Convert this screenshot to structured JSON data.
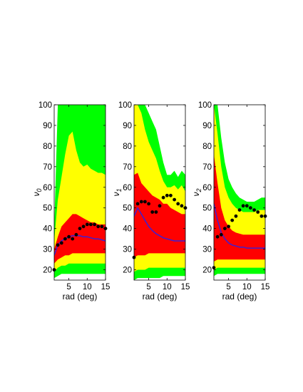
{
  "colors": {
    "outer_band": "#00ff00",
    "middle_band": "#ffff00",
    "inner_band": "#ff0000",
    "median_line": "#3a1fd6",
    "points": "#000000"
  },
  "chart_data": [
    {
      "type": "area",
      "panel": "nu0",
      "ylabel": "ν",
      "ylabel_sub": "0",
      "xlabel": "rad (deg)",
      "xlim": [
        1,
        15
      ],
      "ylim": [
        15,
        100
      ],
      "xticks": [
        5,
        10,
        15
      ],
      "yticks": [
        20,
        30,
        40,
        50,
        60,
        70,
        80,
        90,
        100
      ],
      "x": [
        1,
        2,
        3,
        4,
        5,
        6,
        7,
        8,
        9,
        10,
        11,
        12,
        13,
        14,
        15
      ],
      "outer_band": {
        "low": [
          16,
          17,
          18,
          18,
          18,
          18,
          18,
          18,
          18,
          18,
          18,
          18,
          18,
          18,
          18
        ],
        "high": [
          40,
          100,
          100,
          100,
          100,
          100,
          100,
          100,
          100,
          100,
          100,
          100,
          100,
          100,
          100
        ]
      },
      "middle_band": {
        "low": [
          19,
          21,
          22,
          22,
          23,
          23,
          23,
          23,
          23,
          23,
          23,
          23,
          23,
          23,
          23
        ],
        "high": [
          34,
          54,
          65,
          76,
          85,
          87,
          78,
          72,
          70,
          71,
          69,
          68,
          67,
          67,
          66
        ]
      },
      "inner_band": {
        "low": [
          23,
          25,
          26,
          27,
          27,
          28,
          28,
          28,
          28,
          28,
          28,
          28,
          28,
          28,
          28
        ],
        "high": [
          30,
          36,
          41,
          43,
          45,
          47,
          47,
          46,
          45,
          44,
          43,
          43,
          42,
          42,
          42
        ]
      },
      "median": [
        27,
        32,
        34,
        35,
        36,
        36.5,
        36.5,
        36.5,
        36,
        36,
        35.5,
        35,
        35,
        34.5,
        34
      ],
      "points": [
        {
          "x": 1,
          "y": 20
        },
        {
          "x": 2,
          "y": 32
        },
        {
          "x": 3,
          "y": 33
        },
        {
          "x": 4,
          "y": 35
        },
        {
          "x": 5,
          "y": 36
        },
        {
          "x": 6,
          "y": 35
        },
        {
          "x": 7,
          "y": 37
        },
        {
          "x": 8,
          "y": 40
        },
        {
          "x": 9,
          "y": 41
        },
        {
          "x": 10,
          "y": 42
        },
        {
          "x": 11,
          "y": 42
        },
        {
          "x": 12,
          "y": 42
        },
        {
          "x": 13,
          "y": 41
        },
        {
          "x": 14,
          "y": 41
        },
        {
          "x": 15,
          "y": 40
        }
      ]
    },
    {
      "type": "area",
      "panel": "nu1",
      "ylabel": "ν",
      "ylabel_sub": "1",
      "xlabel": "rad (deg)",
      "xlim": [
        1,
        15
      ],
      "ylim": [
        15,
        100
      ],
      "xticks": [
        5,
        10,
        15
      ],
      "yticks": [
        20,
        30,
        40,
        50,
        60,
        70,
        80,
        90,
        100
      ],
      "x": [
        1,
        2,
        3,
        4,
        5,
        6,
        7,
        8,
        9,
        10,
        11,
        12,
        13,
        14,
        15
      ],
      "outer_band": {
        "low": [
          15,
          16,
          16,
          16,
          16,
          16,
          16,
          16,
          17,
          17,
          17,
          17,
          17,
          17,
          17
        ],
        "high": [
          100,
          100,
          100,
          100,
          96,
          92,
          88,
          80,
          72,
          66,
          66,
          68,
          65,
          68,
          66
        ]
      },
      "middle_band": {
        "low": [
          19,
          20,
          20,
          20,
          21,
          21,
          21,
          21,
          21,
          21,
          21,
          21,
          21,
          21,
          21
        ],
        "high": [
          100,
          100,
          96,
          88,
          82,
          78,
          74,
          68,
          63,
          60,
          60,
          61,
          59,
          61,
          58
        ]
      },
      "inner_band": {
        "low": [
          26,
          27,
          27,
          27,
          28,
          28,
          28,
          28,
          28,
          28,
          28,
          28,
          28,
          28,
          28
        ],
        "high": [
          66,
          67,
          62,
          60,
          58,
          56,
          55,
          54,
          52,
          52,
          50,
          49,
          48,
          47,
          47
        ]
      },
      "median": [
        46,
        50,
        47,
        44,
        41,
        39,
        37.5,
        36.5,
        35.5,
        35,
        34.5,
        34,
        34,
        34,
        34
      ],
      "points": [
        {
          "x": 1,
          "y": 26
        },
        {
          "x": 2,
          "y": 52
        },
        {
          "x": 3,
          "y": 53
        },
        {
          "x": 4,
          "y": 53
        },
        {
          "x": 5,
          "y": 52
        },
        {
          "x": 6,
          "y": 48
        },
        {
          "x": 7,
          "y": 48
        },
        {
          "x": 8,
          "y": 51
        },
        {
          "x": 9,
          "y": 55
        },
        {
          "x": 10,
          "y": 56
        },
        {
          "x": 11,
          "y": 56
        },
        {
          "x": 12,
          "y": 54
        },
        {
          "x": 13,
          "y": 52
        },
        {
          "x": 14,
          "y": 51
        },
        {
          "x": 15,
          "y": 50
        }
      ]
    },
    {
      "type": "area",
      "panel": "nu2",
      "ylabel": "ν",
      "ylabel_sub": "2",
      "xlabel": "rad (deg)",
      "xlim": [
        1,
        15
      ],
      "ylim": [
        15,
        100
      ],
      "xticks": [
        5,
        10,
        15
      ],
      "yticks": [
        20,
        30,
        40,
        50,
        60,
        70,
        80,
        90,
        100
      ],
      "x": [
        1,
        2,
        3,
        4,
        5,
        6,
        7,
        8,
        9,
        10,
        11,
        12,
        13,
        14,
        15
      ],
      "outer_band": {
        "low": [
          17,
          18,
          18,
          18,
          18,
          18,
          18,
          18,
          18,
          18,
          18,
          18,
          18,
          18,
          18
        ],
        "high": [
          100,
          100,
          84,
          72,
          64,
          60,
          57,
          55,
          54,
          53,
          53,
          53,
          54,
          55,
          55
        ]
      },
      "middle_band": {
        "low": [
          20,
          21,
          21,
          21,
          21,
          21,
          21,
          21,
          21,
          21,
          21,
          21,
          21,
          21,
          21
        ],
        "high": [
          100,
          86,
          70,
          60,
          55,
          52,
          50,
          49,
          48,
          48,
          48,
          48,
          49,
          49,
          49
        ]
      },
      "inner_band": {
        "low": [
          24,
          25,
          25,
          25,
          25,
          25,
          25,
          25,
          25,
          25,
          25,
          25,
          25,
          25,
          25
        ],
        "high": [
          76,
          62,
          50,
          44,
          41,
          39,
          38,
          37.5,
          37,
          37,
          37,
          37,
          37,
          37,
          37
        ]
      },
      "median": [
        52,
        44,
        38,
        35,
        33,
        32,
        31.5,
        31,
        31,
        30.5,
        30.5,
        30.5,
        30.5,
        30.5,
        30.5
      ],
      "points": [
        {
          "x": 1,
          "y": 21
        },
        {
          "x": 2,
          "y": 36
        },
        {
          "x": 3,
          "y": 37
        },
        {
          "x": 4,
          "y": 40
        },
        {
          "x": 5,
          "y": 41
        },
        {
          "x": 6,
          "y": 44
        },
        {
          "x": 7,
          "y": 46
        },
        {
          "x": 8,
          "y": 49
        },
        {
          "x": 9,
          "y": 51
        },
        {
          "x": 10,
          "y": 51
        },
        {
          "x": 11,
          "y": 50
        },
        {
          "x": 12,
          "y": 49
        },
        {
          "x": 13,
          "y": 48
        },
        {
          "x": 14,
          "y": 46
        },
        {
          "x": 15,
          "y": 46
        }
      ]
    }
  ]
}
